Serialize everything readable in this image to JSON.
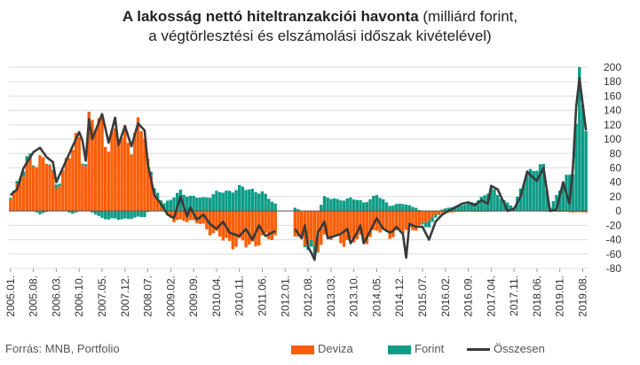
{
  "title": {
    "bold": "A lakosság nettó hiteltranzakciói havonta",
    "rest": " (milliárd forint,",
    "line2": "a végtörlesztési és elszámolási időszak kivételével)"
  },
  "source": "Forrás: MNB, Portfolio",
  "colors": {
    "deviza": "#f95d07",
    "forint": "#0e9c86",
    "total": "#3a3a3a",
    "grid": "#dcdcdc",
    "axis": "#333333"
  },
  "chart_data": {
    "type": "bar",
    "stacked": true,
    "ylim": [
      -80,
      200
    ],
    "y_ticks": [
      200,
      180,
      160,
      140,
      120,
      100,
      80,
      60,
      40,
      20,
      0,
      -20,
      -40,
      -60,
      -80
    ],
    "x_tick_labels": [
      "2005.01.",
      "2005.08.",
      "2006.03.",
      "2006.10.",
      "2007.05.",
      "2007.12.",
      "2008.07.",
      "2009.02.",
      "2009.09.",
      "2010.04.",
      "2010.11.",
      "2011.06.",
      "2012.01.",
      "2012.08.",
      "2013.03.",
      "2013.10.",
      "2014.05.",
      "2014.12.",
      "2015.07.",
      "2016.02.",
      "2016.09.",
      "2017.04.",
      "2017.11.",
      "2018.06.",
      "2019.01.",
      "2019.08."
    ],
    "x_start": "2005.01.",
    "x_end": "2019.09.",
    "legend": [
      "Deviza",
      "Forint",
      "Összesen"
    ],
    "series": [
      {
        "name": "Összesen",
        "kind": "line",
        "points": [
          [
            "2005.01.",
            22
          ],
          [
            "2005.03.",
            30
          ],
          [
            "2005.05.",
            60
          ],
          [
            "2005.08.",
            82
          ],
          [
            "2005.10.",
            88
          ],
          [
            "2005.12.",
            75
          ],
          [
            "2006.02.",
            68
          ],
          [
            "2006.03.",
            40
          ],
          [
            "2006.05.",
            60
          ],
          [
            "2006.08.",
            90
          ],
          [
            "2006.10.",
            110
          ],
          [
            "2006.11.",
            98
          ],
          [
            "2006.12.",
            70
          ],
          [
            "2007.01.",
            128
          ],
          [
            "2007.02.",
            100
          ],
          [
            "2007.05.",
            135
          ],
          [
            "2007.07.",
            95
          ],
          [
            "2007.09.",
            130
          ],
          [
            "2007.10.",
            92
          ],
          [
            "2007.12.",
            118
          ],
          [
            "2008.02.",
            90
          ],
          [
            "2008.04.",
            122
          ],
          [
            "2008.06.",
            112
          ],
          [
            "2008.07.",
            65
          ],
          [
            "2008.09.",
            22
          ],
          [
            "2008.11.",
            10
          ],
          [
            "2009.01.",
            -5
          ],
          [
            "2009.03.",
            -10
          ],
          [
            "2009.05.",
            20
          ],
          [
            "2009.07.",
            -8
          ],
          [
            "2009.08.",
            5
          ],
          [
            "2009.10.",
            -12
          ],
          [
            "2009.12.",
            -5
          ],
          [
            "2010.02.",
            -18
          ],
          [
            "2010.04.",
            -25
          ],
          [
            "2010.06.",
            -15
          ],
          [
            "2010.08.",
            -30
          ],
          [
            "2010.11.",
            -35
          ],
          [
            "2011.01.",
            -25
          ],
          [
            "2011.03.",
            -40
          ],
          [
            "2011.05.",
            -20
          ],
          [
            "2011.07.",
            -35
          ],
          [
            "2011.09.",
            -30
          ],
          [
            "2011.10.",
            -28
          ],
          [
            "2012.04.",
            -25
          ],
          [
            "2012.06.",
            -38
          ],
          [
            "2012.07.",
            -20
          ],
          [
            "2012.08.",
            -50
          ],
          [
            "2012.09.",
            -58
          ],
          [
            "2012.10.",
            -68
          ],
          [
            "2012.11.",
            -30
          ],
          [
            "2013.01.",
            -15
          ],
          [
            "2013.02.",
            -38
          ],
          [
            "2013.04.",
            -35
          ],
          [
            "2013.06.",
            -32
          ],
          [
            "2013.08.",
            -25
          ],
          [
            "2013.09.",
            -45
          ],
          [
            "2013.11.",
            -30
          ],
          [
            "2013.12.",
            -20
          ],
          [
            "2014.01.",
            -45
          ],
          [
            "2014.03.",
            -28
          ],
          [
            "2014.05.",
            -10
          ],
          [
            "2014.07.",
            -25
          ],
          [
            "2014.09.",
            -30
          ],
          [
            "2014.10.",
            -28
          ],
          [
            "2014.11.",
            -22
          ],
          [
            "2015.01.",
            -32
          ],
          [
            "2015.02.",
            -65
          ],
          [
            "2015.03.",
            -18
          ],
          [
            "2015.05.",
            -22
          ],
          [
            "2015.07.",
            -22
          ],
          [
            "2015.09.",
            -40
          ],
          [
            "2015.11.",
            -15
          ],
          [
            "2016.01.",
            -5
          ],
          [
            "2016.03.",
            0
          ],
          [
            "2016.05.",
            5
          ],
          [
            "2016.07.",
            10
          ],
          [
            "2016.09.",
            12
          ],
          [
            "2016.11.",
            8
          ],
          [
            "2017.01.",
            15
          ],
          [
            "2017.03.",
            10
          ],
          [
            "2017.04.",
            35
          ],
          [
            "2017.06.",
            30
          ],
          [
            "2017.08.",
            10
          ],
          [
            "2017.09.",
            0
          ],
          [
            "2017.11.",
            3
          ],
          [
            "2018.01.",
            20
          ],
          [
            "2018.03.",
            55
          ],
          [
            "2018.04.",
            50
          ],
          [
            "2018.06.",
            42
          ],
          [
            "2018.08.",
            60
          ],
          [
            "2018.10.",
            0
          ],
          [
            "2018.12.",
            2
          ],
          [
            "2019.02.",
            40
          ],
          [
            "2019.04.",
            10
          ],
          [
            "2019.05.",
            60
          ],
          [
            "2019.06.",
            145
          ],
          [
            "2019.07.",
            185
          ],
          [
            "2019.09.",
            112
          ]
        ]
      },
      {
        "name": "Deviza",
        "kind": "bar",
        "points": [
          [
            "2005.01.",
            20
          ],
          [
            "2005.05.",
            50
          ],
          [
            "2005.08.",
            75
          ],
          [
            "2005.12.",
            70
          ],
          [
            "2006.03.",
            35
          ],
          [
            "2006.08.",
            85
          ],
          [
            "2006.10.",
            103
          ],
          [
            "2006.12.",
            68
          ],
          [
            "2007.01.",
            118
          ],
          [
            "2007.05.",
            120
          ],
          [
            "2007.07.",
            100
          ],
          [
            "2007.10.",
            98
          ],
          [
            "2007.12.",
            110
          ],
          [
            "2008.02.",
            100
          ],
          [
            "2008.06.",
            112
          ],
          [
            "2008.07.",
            70
          ],
          [
            "2008.09.",
            30
          ],
          [
            "2008.11.",
            5
          ],
          [
            "2009.01.",
            -5
          ],
          [
            "2009.03.",
            -15
          ],
          [
            "2009.06.",
            -12
          ],
          [
            "2009.09.",
            -15
          ],
          [
            "2009.12.",
            -20
          ],
          [
            "2010.04.",
            -35
          ],
          [
            "2010.08.",
            -42
          ],
          [
            "2010.11.",
            -48
          ],
          [
            "2011.03.",
            -45
          ],
          [
            "2011.06.",
            -40
          ],
          [
            "2011.10.",
            -35
          ],
          [
            "2012.04.",
            -30
          ],
          [
            "2012.08.",
            -48
          ],
          [
            "2012.10.",
            -55
          ],
          [
            "2013.01.",
            -35
          ],
          [
            "2013.05.",
            -40
          ],
          [
            "2013.09.",
            -42
          ],
          [
            "2014.01.",
            -40
          ],
          [
            "2014.05.",
            -28
          ],
          [
            "2014.09.",
            -32
          ],
          [
            "2015.01.",
            -30
          ],
          [
            "2015.03.",
            -25
          ],
          [
            "2015.07.",
            -20
          ],
          [
            "2015.11.",
            -5
          ],
          [
            "2016.01.",
            -3
          ],
          [
            "2016.06.",
            -1
          ],
          [
            "2017.01.",
            -1
          ],
          [
            "2018.01.",
            0
          ],
          [
            "2019.09.",
            -2
          ]
        ]
      },
      {
        "name": "Forint",
        "kind": "bar",
        "points": [
          [
            "2005.01.",
            2
          ],
          [
            "2005.06.",
            8
          ],
          [
            "2005.10.",
            -5
          ],
          [
            "2006.03.",
            5
          ],
          [
            "2006.08.",
            -4
          ],
          [
            "2006.12.",
            3
          ],
          [
            "2007.05.",
            -10
          ],
          [
            "2007.10.",
            -12
          ],
          [
            "2008.02.",
            -10
          ],
          [
            "2008.06.",
            -8
          ],
          [
            "2008.08.",
            5
          ],
          [
            "2008.11.",
            10
          ],
          [
            "2009.02.",
            15
          ],
          [
            "2009.05.",
            28
          ],
          [
            "2009.08.",
            20
          ],
          [
            "2009.12.",
            18
          ],
          [
            "2010.04.",
            25
          ],
          [
            "2010.08.",
            28
          ],
          [
            "2010.11.",
            32
          ],
          [
            "2011.03.",
            30
          ],
          [
            "2011.06.",
            25
          ],
          [
            "2011.10.",
            10
          ],
          [
            "2012.04.",
            5
          ],
          [
            "2012.08.",
            -5
          ],
          [
            "2012.10.",
            -12
          ],
          [
            "2013.01.",
            20
          ],
          [
            "2013.05.",
            15
          ],
          [
            "2013.09.",
            18
          ],
          [
            "2014.01.",
            12
          ],
          [
            "2014.05.",
            22
          ],
          [
            "2014.09.",
            8
          ],
          [
            "2015.01.",
            10
          ],
          [
            "2015.05.",
            5
          ],
          [
            "2015.09.",
            -10
          ],
          [
            "2016.01.",
            2
          ],
          [
            "2016.06.",
            8
          ],
          [
            "2016.11.",
            12
          ],
          [
            "2017.04.",
            30
          ],
          [
            "2017.08.",
            15
          ],
          [
            "2017.11.",
            5
          ],
          [
            "2018.03.",
            55
          ],
          [
            "2018.08.",
            60
          ],
          [
            "2018.10.",
            5
          ],
          [
            "2019.02.",
            38
          ],
          [
            "2019.05.",
            60
          ],
          [
            "2019.07.",
            185
          ],
          [
            "2019.09.",
            112
          ]
        ]
      }
    ]
  }
}
